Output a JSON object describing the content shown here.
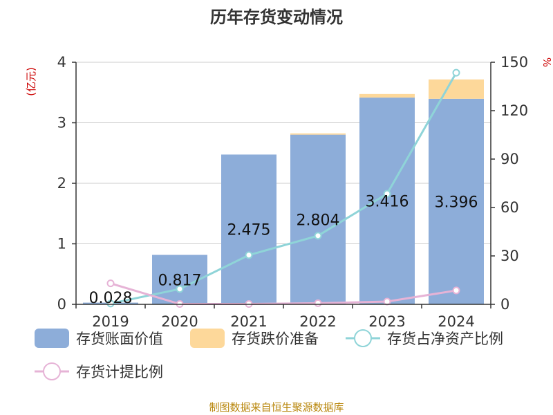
{
  "title": "历年存货变动情况",
  "source": "制图数据来自恒生聚源数据库",
  "colors": {
    "book_value": "#8dadd9",
    "impairment": "#fdd89a",
    "ratio_net_assets": "#8fd4d8",
    "provision_ratio": "#e6b3d6"
  },
  "chart_data": {
    "type": "bar",
    "title": "历年存货变动情况",
    "categories": [
      "2019",
      "2020",
      "2021",
      "2022",
      "2023",
      "2024"
    ],
    "y_left": {
      "unit": "(亿元)",
      "ylim": [
        0,
        4
      ],
      "ticks": [
        0,
        1,
        2,
        3,
        4
      ]
    },
    "y_right": {
      "unit": "%",
      "ylim": [
        0,
        150
      ],
      "ticks": [
        0,
        30,
        60,
        90,
        120,
        150
      ]
    },
    "grid": true,
    "legend_position": "bottom",
    "series": [
      {
        "name": "存货账面价值",
        "kind": "bar",
        "axis": "left",
        "values": [
          0.028,
          0.817,
          2.475,
          2.804,
          3.416,
          3.396
        ],
        "labels": [
          "0.028",
          "0.817",
          "2.475",
          "2.804",
          "3.416",
          "3.396"
        ]
      },
      {
        "name": "存货跌价准备",
        "kind": "bar-stack",
        "axis": "left",
        "values": [
          0,
          0,
          0,
          0.02,
          0.06,
          0.32
        ]
      },
      {
        "name": "存货占净资产比例",
        "kind": "line",
        "axis": "right",
        "values": [
          0.5,
          9.5,
          30.5,
          42.5,
          68.5,
          143.5
        ]
      },
      {
        "name": "存货计提比例",
        "kind": "line",
        "axis": "right",
        "values": [
          13,
          0.2,
          0.2,
          0.7,
          1.7,
          8.6
        ]
      }
    ]
  }
}
